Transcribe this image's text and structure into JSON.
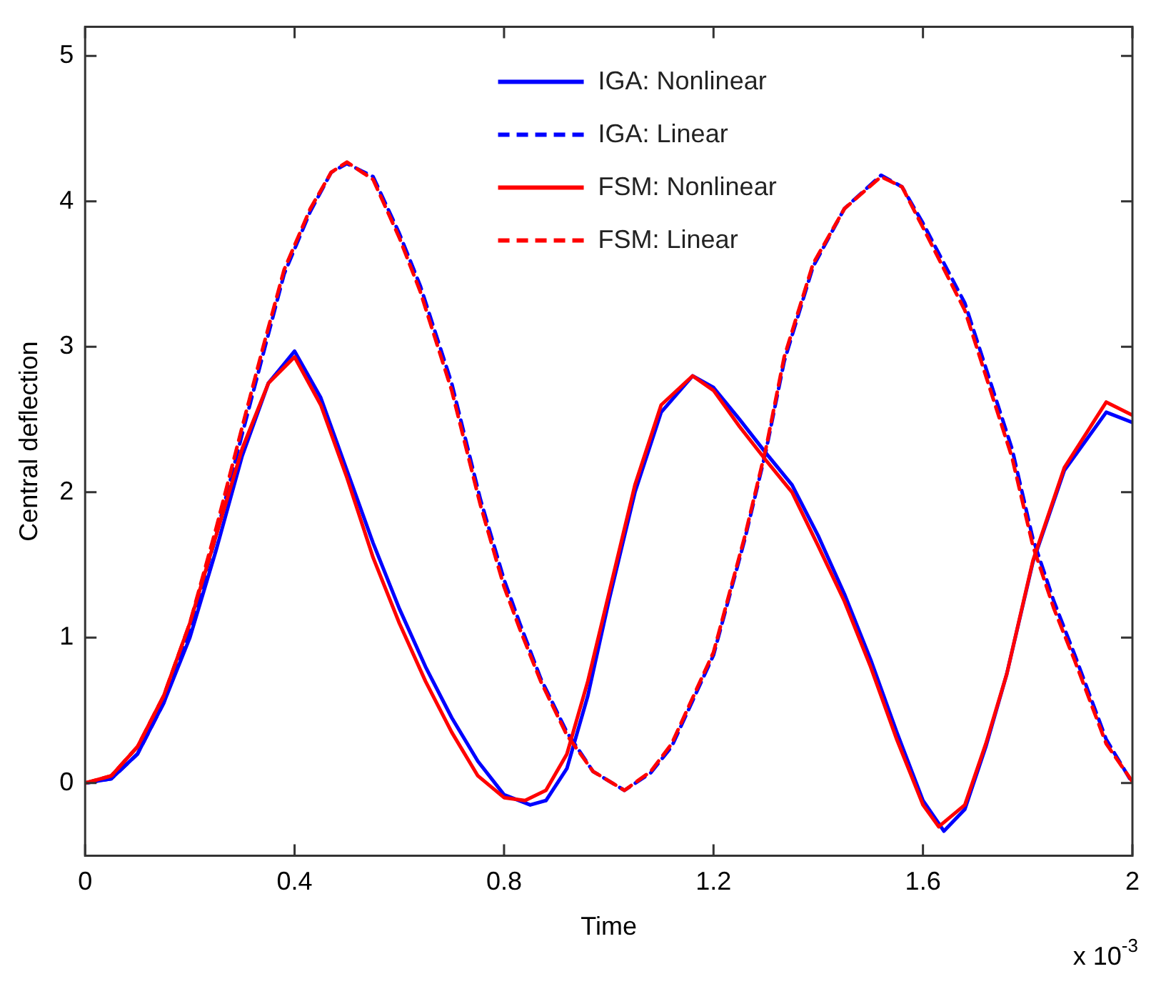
{
  "chart_data": {
    "type": "line",
    "xlabel": "Time",
    "ylabel": "Central deflection",
    "annotations": [
      "x 10$^{-3}$"
    ],
    "xlim": [
      0,
      2
    ],
    "xticks": [
      0,
      0.4,
      0.8,
      1.2,
      1.6,
      2
    ],
    "ylim": [
      -0.5,
      5.2
    ],
    "yticks": [
      0,
      1,
      2,
      3,
      4,
      5
    ],
    "grid": false,
    "legend": "top",
    "marker": "none",
    "series": [
      {
        "name": "IGA: Nonlinear",
        "color": "#0000ff",
        "line_style": "solid",
        "x": [
          0,
          0.05,
          0.1,
          0.15,
          0.2,
          0.25,
          0.3,
          0.35,
          0.4,
          0.45,
          0.5,
          0.55,
          0.6,
          0.65,
          0.7,
          0.75,
          0.8,
          0.85,
          0.88,
          0.92,
          0.96,
          1.0,
          1.05,
          1.1,
          1.16,
          1.2,
          1.25,
          1.3,
          1.35,
          1.4,
          1.45,
          1.5,
          1.55,
          1.6,
          1.64,
          1.68,
          1.72,
          1.76,
          1.81,
          1.87,
          1.95,
          2.0
        ],
        "values": [
          0,
          0.03,
          0.2,
          0.55,
          1.0,
          1.6,
          2.25,
          2.75,
          2.97,
          2.65,
          2.15,
          1.65,
          1.2,
          0.8,
          0.45,
          0.15,
          -0.08,
          -0.15,
          -0.12,
          0.1,
          0.6,
          1.25,
          2.0,
          2.55,
          2.8,
          2.72,
          2.5,
          2.27,
          2.05,
          1.7,
          1.3,
          0.85,
          0.35,
          -0.12,
          -0.33,
          -0.18,
          0.25,
          0.75,
          1.52,
          2.15,
          2.55,
          2.48
        ]
      },
      {
        "name": "IGA: Linear",
        "color": "#0000ff",
        "line_style": "dashed",
        "x": [
          0,
          0.05,
          0.1,
          0.15,
          0.2,
          0.25,
          0.3,
          0.34,
          0.38,
          0.43,
          0.47,
          0.5,
          0.55,
          0.6,
          0.64,
          0.7,
          0.755,
          0.8,
          0.83,
          0.87,
          0.92,
          0.97,
          1.03,
          1.08,
          1.12,
          1.2,
          1.26,
          1.3,
          1.335,
          1.39,
          1.45,
          1.52,
          1.56,
          1.6,
          1.68,
          1.77,
          1.81,
          1.85,
          1.89,
          1.95,
          2.0
        ],
        "values": [
          0,
          0.03,
          0.2,
          0.55,
          1.05,
          1.7,
          2.4,
          2.95,
          3.5,
          3.93,
          4.2,
          4.26,
          4.17,
          3.78,
          3.42,
          2.75,
          1.95,
          1.4,
          1.1,
          0.72,
          0.35,
          0.08,
          -0.05,
          0.07,
          0.25,
          0.88,
          1.68,
          2.28,
          2.9,
          3.55,
          3.95,
          4.18,
          4.1,
          3.85,
          3.3,
          2.3,
          1.68,
          1.25,
          0.88,
          0.3,
          0
        ]
      },
      {
        "name": "FSM: Nonlinear",
        "color": "#ff0000",
        "line_style": "solid",
        "x": [
          0,
          0.05,
          0.1,
          0.15,
          0.2,
          0.25,
          0.3,
          0.35,
          0.4,
          0.45,
          0.5,
          0.55,
          0.6,
          0.65,
          0.7,
          0.75,
          0.8,
          0.84,
          0.88,
          0.92,
          0.96,
          1.0,
          1.05,
          1.1,
          1.16,
          1.2,
          1.25,
          1.3,
          1.35,
          1.4,
          1.45,
          1.5,
          1.55,
          1.6,
          1.63,
          1.68,
          1.72,
          1.76,
          1.81,
          1.87,
          1.95,
          2.0
        ],
        "values": [
          0,
          0.05,
          0.25,
          0.6,
          1.1,
          1.7,
          2.3,
          2.75,
          2.93,
          2.6,
          2.1,
          1.55,
          1.1,
          0.7,
          0.35,
          0.05,
          -0.1,
          -0.12,
          -0.05,
          0.2,
          0.7,
          1.3,
          2.05,
          2.6,
          2.8,
          2.7,
          2.45,
          2.22,
          2.0,
          1.63,
          1.25,
          0.8,
          0.3,
          -0.15,
          -0.3,
          -0.15,
          0.27,
          0.75,
          1.53,
          2.17,
          2.62,
          2.53
        ]
      },
      {
        "name": "FSM: Linear",
        "color": "#ff0000",
        "line_style": "dashed",
        "x": [
          0,
          0.05,
          0.1,
          0.15,
          0.2,
          0.25,
          0.3,
          0.34,
          0.38,
          0.43,
          0.47,
          0.5,
          0.55,
          0.6,
          0.64,
          0.7,
          0.755,
          0.8,
          0.83,
          0.87,
          0.92,
          0.97,
          1.03,
          1.08,
          1.12,
          1.2,
          1.26,
          1.3,
          1.335,
          1.39,
          1.45,
          1.52,
          1.56,
          1.6,
          1.68,
          1.77,
          1.81,
          1.85,
          1.89,
          1.95,
          2.0
        ],
        "values": [
          0,
          0.05,
          0.25,
          0.6,
          1.1,
          1.75,
          2.45,
          3.0,
          3.53,
          3.95,
          4.2,
          4.27,
          4.15,
          3.75,
          3.38,
          2.7,
          1.91,
          1.35,
          1.06,
          0.7,
          0.33,
          0.08,
          -0.05,
          0.08,
          0.27,
          0.9,
          1.7,
          2.3,
          2.93,
          3.57,
          3.95,
          4.17,
          4.1,
          3.82,
          3.25,
          2.24,
          1.63,
          1.2,
          0.84,
          0.27,
          0.01
        ]
      }
    ]
  }
}
